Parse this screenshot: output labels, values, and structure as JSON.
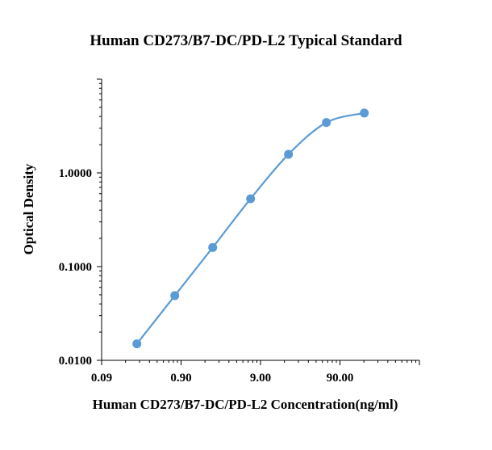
{
  "chart_data": {
    "type": "scatter",
    "title": "Human CD273/B7-DC/PD-L2 Typical Standard",
    "xlabel": "Human CD273/B7-DC/PD-L2 Concentration(ng/ml)",
    "ylabel": "Optical Density",
    "xscale": "log",
    "yscale": "log",
    "xlim": [
      0.09,
      900
    ],
    "ylim": [
      0.01,
      10
    ],
    "x_major_ticks": [
      0.09,
      0.9,
      9,
      90
    ],
    "x_tick_labels": [
      "0.09",
      "0.90",
      "9.00",
      "90.00"
    ],
    "y_major_ticks": [
      0.01,
      0.1,
      1
    ],
    "y_tick_labels": [
      "0.0100",
      "0.1000",
      "1.0000"
    ],
    "grid": false,
    "legend": "none",
    "series": [
      {
        "x": [
          0.25,
          0.75,
          2.25,
          6.75,
          20.25,
          60.75,
          182.25
        ],
        "y": [
          0.015,
          0.049,
          0.16,
          0.53,
          1.58,
          3.45,
          4.35
        ],
        "color": "#5B9BD5",
        "marker": "circle",
        "line": "smooth"
      }
    ]
  }
}
